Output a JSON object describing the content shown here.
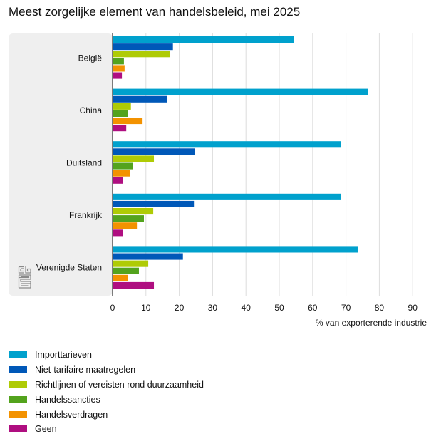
{
  "chart_data": {
    "type": "bar",
    "orientation": "horizontal",
    "title": "Meest zorgelijke element van handelsbeleid, mei 2025",
    "xlabel": "% van exporterende industrie",
    "ylabel": "",
    "xlim": [
      0,
      95
    ],
    "xticks": [
      0,
      10,
      20,
      30,
      40,
      50,
      60,
      70,
      80,
      90
    ],
    "xtick_labels": [
      "0",
      "10",
      "20",
      "30",
      "40",
      "50",
      "60",
      "70",
      "80",
      "90"
    ],
    "grid": true,
    "legend_position": "bottom",
    "categories": [
      "België",
      "China",
      "Duitsland",
      "Frankrijk",
      "Verenigde Staten"
    ],
    "series": [
      {
        "name": "Importtarieven",
        "color": "#00a1cd",
        "values": [
          54.3,
          76.6,
          68.5,
          68.5,
          73.5
        ]
      },
      {
        "name": "Niet-tarifaire maatregelen",
        "color": "#0058b8",
        "values": [
          18.1,
          16.4,
          24.6,
          24.4,
          21.1
        ]
      },
      {
        "name": "Richtlijnen of vereisten rond duurzaamheid",
        "color": "#afcb05",
        "values": [
          17.1,
          5.5,
          12.4,
          12.2,
          10.7
        ]
      },
      {
        "name": "Handelssancties",
        "color": "#53a31d",
        "values": [
          3.4,
          4.5,
          6.0,
          9.4,
          7.9
        ]
      },
      {
        "name": "Handelsverdragen",
        "color": "#f39200",
        "values": [
          3.6,
          9.0,
          5.3,
          7.3,
          4.5
        ]
      },
      {
        "name": "Geen",
        "color": "#af0e80",
        "values": [
          2.8,
          4.1,
          3.0,
          3.0,
          12.4
        ]
      }
    ]
  },
  "logo": {
    "text": "cbs"
  }
}
